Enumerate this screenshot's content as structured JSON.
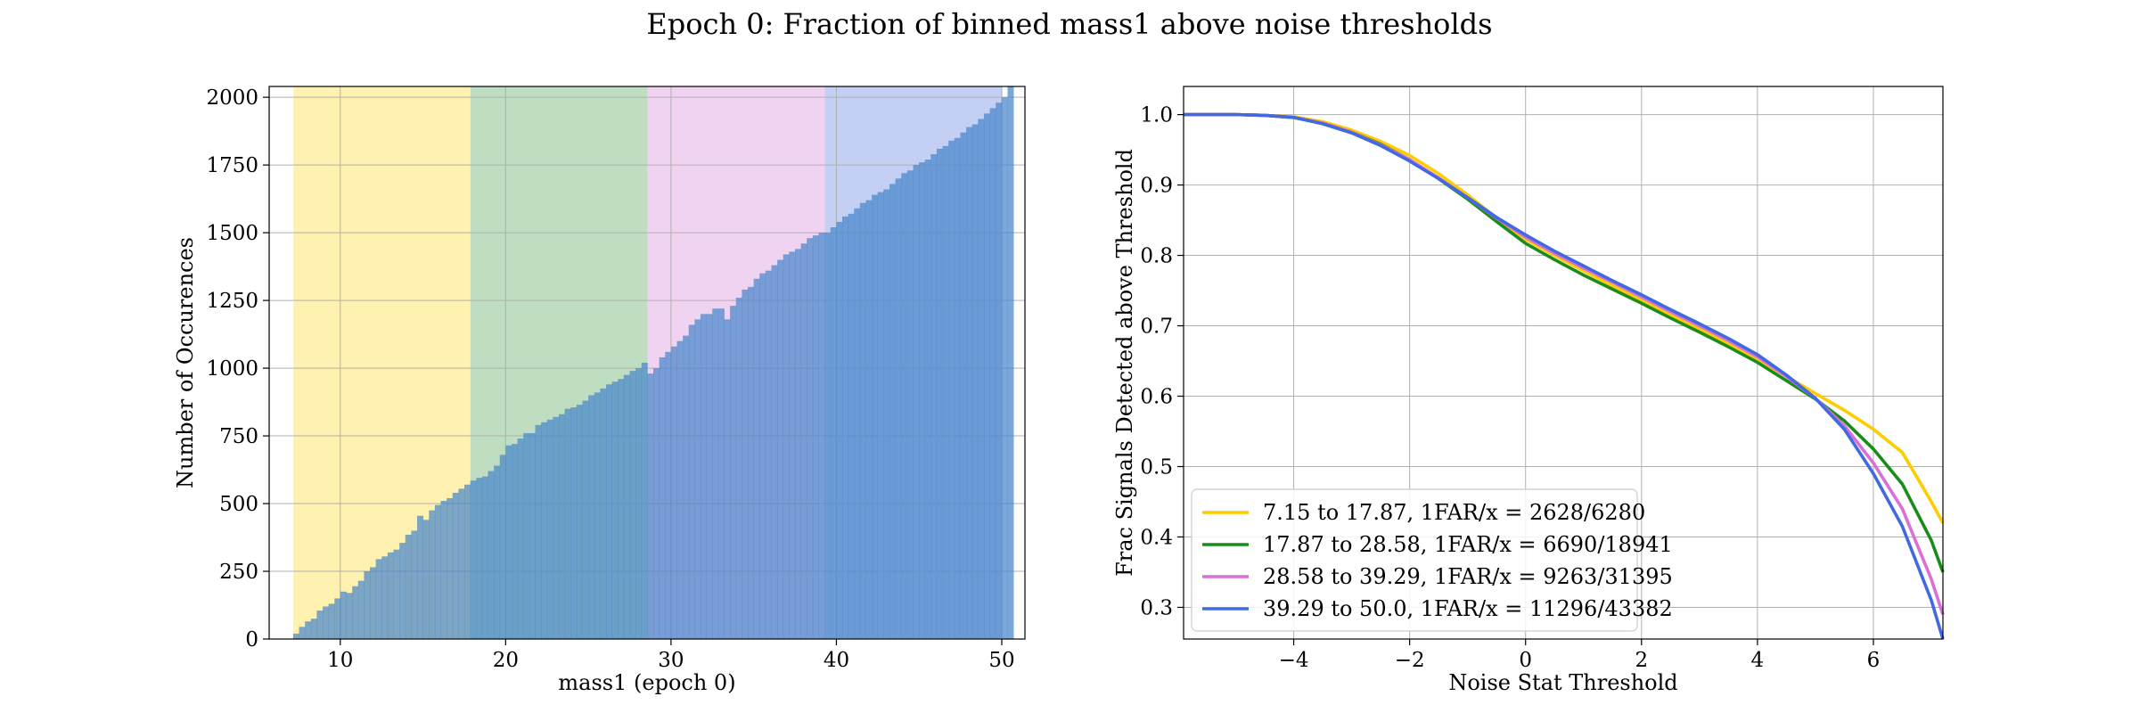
{
  "figure": {
    "suptitle": "Epoch 0: Fraction of binned mass1 above noise thresholds"
  },
  "chart_data": [
    {
      "type": "bar",
      "title": "",
      "xlabel": "mass1 (epoch 0)",
      "ylabel": "Number of Occurences",
      "xlim": [
        5.7,
        51.4
      ],
      "ylim": [
        0,
        2040
      ],
      "xticks": [
        10,
        20,
        30,
        40,
        50
      ],
      "yticks": [
        0,
        250,
        500,
        750,
        1000,
        1250,
        1500,
        1750,
        2000
      ],
      "grid": true,
      "bin_start": 7.15,
      "bin_width": 0.357,
      "bar_color": "#4a86cb",
      "bands": [
        {
          "from": 7.15,
          "to": 17.87,
          "color": "#fff2b0"
        },
        {
          "from": 17.87,
          "to": 28.58,
          "color": "#bfddc1"
        },
        {
          "from": 28.58,
          "to": 39.29,
          "color": "#f0d3f0"
        },
        {
          "from": 39.29,
          "to": 50.0,
          "color": "#c3d0f3"
        }
      ],
      "values": [
        20,
        45,
        65,
        75,
        105,
        120,
        130,
        150,
        175,
        170,
        195,
        215,
        250,
        265,
        295,
        305,
        320,
        330,
        355,
        385,
        400,
        455,
        440,
        475,
        495,
        510,
        520,
        540,
        555,
        570,
        585,
        595,
        600,
        620,
        640,
        680,
        715,
        720,
        740,
        760,
        760,
        790,
        800,
        810,
        820,
        830,
        850,
        855,
        865,
        880,
        900,
        910,
        925,
        940,
        950,
        960,
        975,
        990,
        1000,
        1020,
        980,
        1000,
        1040,
        1060,
        1080,
        1100,
        1120,
        1160,
        1180,
        1200,
        1200,
        1220,
        1220,
        1180,
        1230,
        1260,
        1290,
        1300,
        1330,
        1350,
        1360,
        1380,
        1400,
        1420,
        1430,
        1440,
        1460,
        1480,
        1490,
        1500,
        1500,
        1520,
        1540,
        1560,
        1570,
        1590,
        1610,
        1620,
        1640,
        1650,
        1660,
        1680,
        1700,
        1720,
        1730,
        1750,
        1760,
        1770,
        1790,
        1810,
        1820,
        1840,
        1850,
        1870,
        1890,
        1900,
        1920,
        1940,
        1960,
        1980,
        2000,
        2040
      ]
    },
    {
      "type": "line",
      "title": "",
      "xlabel": "Noise Stat Threshold",
      "ylabel": "Frac Signals Detected above Threshold",
      "xlim": [
        -5.9,
        7.2
      ],
      "ylim": [
        0.255,
        1.04
      ],
      "xticks": [
        -4,
        -2,
        0,
        2,
        4,
        6
      ],
      "yticks": [
        0.3,
        0.4,
        0.5,
        0.6,
        0.7,
        0.8,
        0.9,
        1.0
      ],
      "grid": true,
      "legend_position": "lower-left",
      "x": [
        -5.9,
        -5.0,
        -4.5,
        -4.0,
        -3.5,
        -3.0,
        -2.5,
        -2.0,
        -1.5,
        -1.0,
        -0.5,
        0.0,
        0.5,
        1.0,
        1.5,
        2.0,
        2.5,
        3.0,
        3.5,
        4.0,
        4.5,
        5.0,
        5.5,
        6.0,
        6.5,
        7.0,
        7.2
      ],
      "series": [
        {
          "name": "7.15 to 17.87, 1FAR/x = 2628/6280",
          "color": "#ffcc00",
          "values": [
            1.0,
            1.0,
            0.999,
            0.997,
            0.99,
            0.978,
            0.962,
            0.942,
            0.916,
            0.886,
            0.853,
            0.823,
            0.8,
            0.778,
            0.757,
            0.737,
            0.716,
            0.696,
            0.675,
            0.653,
            0.628,
            0.604,
            0.58,
            0.553,
            0.52,
            0.45,
            0.42
          ]
        },
        {
          "name": "17.87 to 28.58, 1FAR/x = 6690/18941",
          "color": "#1a8c1a",
          "values": [
            1.0,
            1.0,
            0.999,
            0.996,
            0.988,
            0.975,
            0.958,
            0.936,
            0.909,
            0.88,
            0.848,
            0.817,
            0.794,
            0.772,
            0.752,
            0.732,
            0.711,
            0.691,
            0.67,
            0.648,
            0.622,
            0.596,
            0.565,
            0.525,
            0.475,
            0.395,
            0.35
          ]
        },
        {
          "name": "28.58 to 39.29, 1FAR/x = 9263/31395",
          "color": "#da70d6",
          "values": [
            1.0,
            1.0,
            0.999,
            0.996,
            0.988,
            0.975,
            0.957,
            0.936,
            0.91,
            0.882,
            0.853,
            0.826,
            0.803,
            0.782,
            0.762,
            0.741,
            0.72,
            0.7,
            0.679,
            0.656,
            0.628,
            0.597,
            0.558,
            0.505,
            0.44,
            0.34,
            0.29
          ]
        },
        {
          "name": "39.29 to 50.0, 1FAR/x = 11296/43382",
          "color": "#4169e1",
          "values": [
            1.0,
            1.0,
            0.999,
            0.996,
            0.987,
            0.974,
            0.956,
            0.934,
            0.909,
            0.882,
            0.854,
            0.829,
            0.806,
            0.785,
            0.764,
            0.744,
            0.723,
            0.703,
            0.682,
            0.659,
            0.63,
            0.597,
            0.553,
            0.49,
            0.415,
            0.31,
            0.255
          ]
        }
      ]
    }
  ]
}
